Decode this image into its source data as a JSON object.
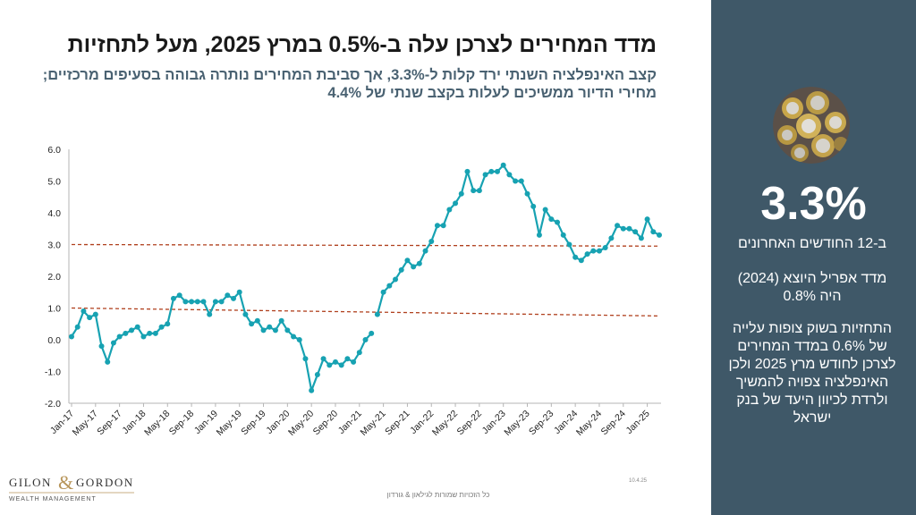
{
  "title": "מדד המחירים לצרכן עלה ב-0.5% במרץ 2025, מעל לתחזיות",
  "subtitle": [
    "קצב האינפלציה השנתי ירד קלות ל-3.3%, אך סביבת המחירים נותרה גבוהה בסעיפים מרכזיים;",
    "מחירי הדיור ממשיכים לעלות בקצב שנתי של 4.4%"
  ],
  "side_panel": {
    "big_number": "3.3%",
    "caption": "ב-12 החודשים האחרונים",
    "april_index": [
      "מדד אפריל היוצא (2024)",
      "היה 0.8%"
    ],
    "forecast": "התחזיות בשוק צופות עלייה של 0.6% במדד המחירים לצרכן לחודש מרץ 2025 ולכן האינפלציה צפויה להמשיך ולרדת לכיוון היעד של בנק ישראל",
    "image_icon": "coins-image"
  },
  "logo": {
    "name": "GILON & GORDON",
    "tagline": "WEALTH MANAGEMENT"
  },
  "footer": "כל הזכויות שמורות לגילאון & גורדון",
  "date_stamp": "10.4.25",
  "colors": {
    "line": "#17a2b2",
    "band": "#b0401e",
    "panel": "#3f5868",
    "subtitle": "#4a6272"
  },
  "chart_data": {
    "type": "line",
    "title": "",
    "xlabel": "",
    "ylabel": "",
    "ylim": [
      -2.0,
      6.0
    ],
    "yticks": [
      "-2.0",
      "-1.0",
      "0.0",
      "1.0",
      "2.0",
      "3.0",
      "4.0",
      "5.0",
      "6.0"
    ],
    "xticks": [
      "Jan-17",
      "May-17",
      "Sep-17",
      "Jan-18",
      "May-18",
      "Sep-18",
      "Jan-19",
      "May-19",
      "Sep-19",
      "Jan-20",
      "May-20",
      "Sep-20",
      "Jan-21",
      "May-21",
      "Sep-21",
      "Jan-22",
      "May-22",
      "Sep-22",
      "Jan-23",
      "May-23",
      "Sep-23",
      "Jan-24",
      "May-24",
      "Sep-24",
      "Jan-25"
    ],
    "x_start": "Jan-17",
    "x_end": "Mar-25",
    "series": [
      {
        "values": [
          0.1,
          0.4,
          0.9,
          0.7,
          0.8,
          -0.2,
          -0.7,
          -0.1,
          0.1,
          0.2,
          0.3,
          0.4,
          0.1,
          0.2,
          0.2,
          0.4,
          0.5,
          1.3,
          1.4,
          1.2,
          1.2,
          1.2,
          1.2,
          0.8,
          1.2,
          1.2,
          1.4,
          1.3,
          1.5,
          0.8,
          0.5,
          0.6,
          0.3,
          0.4,
          0.3,
          0.6,
          0.3,
          0.1,
          0.0,
          -0.6,
          -1.6,
          -1.1,
          -0.6,
          -0.8,
          -0.7,
          -0.8,
          -0.6,
          -0.7,
          -0.4,
          0.0,
          0.2,
          0.8,
          1.5,
          1.7,
          1.9,
          2.2,
          2.5,
          2.3,
          2.4,
          2.8,
          3.1,
          3.6,
          3.6,
          4.1,
          4.3,
          4.6,
          5.3,
          4.7,
          4.7,
          5.2,
          5.3,
          5.3,
          5.5,
          5.2,
          5.0,
          5.0,
          4.6,
          4.2,
          3.3,
          4.1,
          3.8,
          3.7,
          3.3,
          3.0,
          2.6,
          2.5,
          2.7,
          2.8,
          2.8,
          2.9,
          3.2,
          3.6,
          3.5,
          3.5,
          3.4,
          3.2,
          3.8,
          3.4,
          3.3
        ],
        "gap_after_index": 50
      }
    ],
    "reference_lines": [
      {
        "name": "",
        "from": 1.0,
        "to": 0.75,
        "style": "dashed"
      },
      {
        "name": "",
        "from": 3.0,
        "to": 2.95,
        "style": "dashed"
      }
    ],
    "grid": false
  }
}
